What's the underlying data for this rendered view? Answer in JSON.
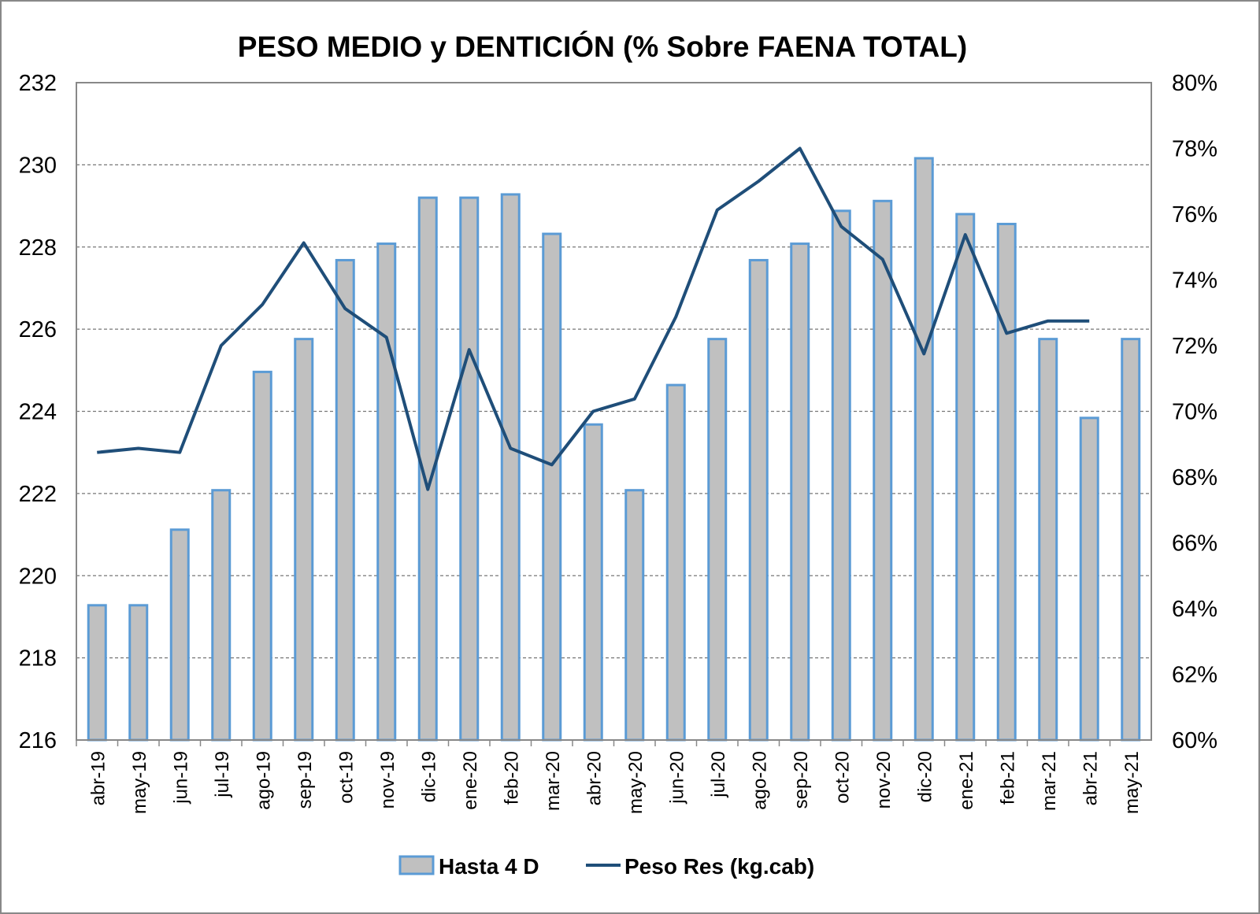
{
  "chart_data": {
    "type": "bar",
    "title": "PESO MEDIO y DENTICIÓN (% Sobre FAENA TOTAL)",
    "categories": [
      "abr-19",
      "may-19",
      "jun-19",
      "jul-19",
      "ago-19",
      "sep-19",
      "oct-19",
      "nov-19",
      "dic-19",
      "ene-20",
      "feb-20",
      "mar-20",
      "abr-20",
      "may-20",
      "jun-20",
      "jul-20",
      "ago-20",
      "sep-20",
      "oct-20",
      "nov-20",
      "dic-20",
      "ene-21",
      "feb-21",
      "mar-21",
      "abr-21",
      "may-21"
    ],
    "left_axis": {
      "ylim": [
        216,
        232
      ],
      "ticks": [
        "216",
        "218",
        "220",
        "222",
        "224",
        "226",
        "228",
        "230",
        "232"
      ]
    },
    "right_axis": {
      "ylim": [
        60,
        80
      ],
      "ticks": [
        "60%",
        "62%",
        "64%",
        "66%",
        "68%",
        "70%",
        "72%",
        "74%",
        "76%",
        "78%",
        "80%"
      ]
    },
    "grid": true,
    "legend_position": "bottom",
    "series": [
      {
        "name": "Hasta 4 D",
        "type": "bar",
        "axis": "right",
        "fill": "#c0c0c0",
        "stroke": "#5b9bd5",
        "values": [
          64.1,
          64.1,
          66.4,
          67.6,
          71.2,
          72.2,
          74.6,
          75.1,
          76.5,
          76.5,
          76.6,
          75.4,
          69.6,
          67.6,
          70.8,
          72.2,
          74.6,
          75.1,
          76.1,
          76.4,
          77.7,
          76.0,
          75.7,
          72.2,
          69.8,
          72.2
        ]
      },
      {
        "name": "Peso Res (kg.cab)",
        "type": "line",
        "axis": "left",
        "color": "#1f4e79",
        "values": [
          223.0,
          223.1,
          223.0,
          225.6,
          226.6,
          228.1,
          226.5,
          225.8,
          222.1,
          225.5,
          223.1,
          222.7,
          224.0,
          224.3,
          226.3,
          228.9,
          229.6,
          230.4,
          228.5,
          227.7,
          225.4,
          228.3,
          225.9,
          226.2,
          226.2,
          null
        ]
      }
    ]
  }
}
